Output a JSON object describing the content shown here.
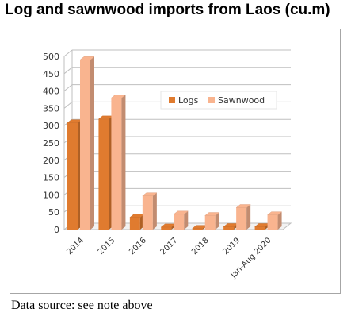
{
  "title": "Log and sawnwood imports from Laos (cu.m)",
  "source_note": "Data source: see note above",
  "chart_data": {
    "type": "bar",
    "title": "Log and sawnwood imports from Laos (cu.m)",
    "categories": [
      "2014",
      "2015",
      "2016",
      "2017",
      "2018",
      "2019",
      "Jan-Aug 2020"
    ],
    "series": [
      {
        "name": "Logs",
        "values": [
          308,
          319,
          35,
          7,
          3,
          8,
          8
        ],
        "color": "#e07b2f"
      },
      {
        "name": "Sawnwood",
        "values": [
          490,
          380,
          97,
          44,
          40,
          63,
          42
        ],
        "color": "#f9b48f"
      }
    ],
    "yticks": [
      "0",
      "50",
      "100",
      "150",
      "200",
      "250",
      "300",
      "350",
      "400",
      "450",
      "500"
    ],
    "ylim": [
      0,
      500
    ],
    "legend_position": "top-center",
    "grid": true,
    "style": "3d-column"
  }
}
